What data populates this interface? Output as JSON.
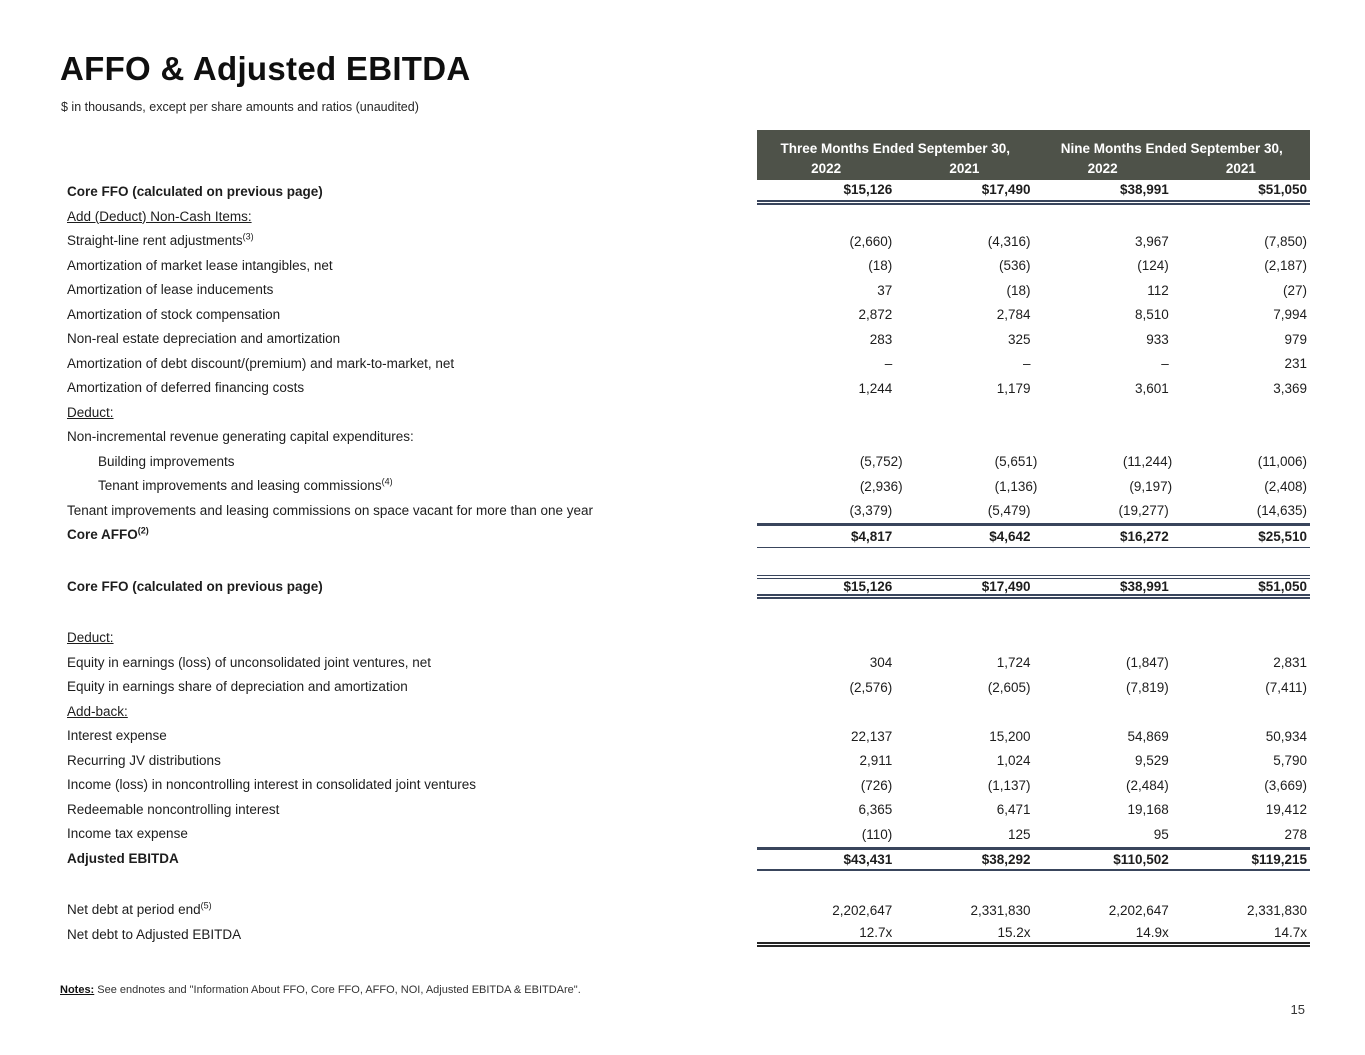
{
  "page": {
    "title": "AFFO & Adjusted EBITDA",
    "subtitle": "$ in thousands, except per share amounts and ratios (unaudited)",
    "page_number": "15"
  },
  "footer": {
    "notes_label": "Notes:",
    "notes_text": " See endnotes and \"Information About FFO, Core FFO, AFFO, NOI, Adjusted EBITDA & EBITDAre\"."
  },
  "colors": {
    "header_bg": "#4e5249",
    "rule": "#39455c",
    "rule_final": "#262626",
    "text": "#1d1d1d"
  },
  "table": {
    "header": {
      "group1": "Three Months Ended September 30,",
      "group2": "Nine Months Ended September 30,",
      "years": [
        "2022",
        "2021",
        "2022",
        "2021"
      ]
    },
    "rows": [
      {
        "label": "Core FFO (calculated on previous page)",
        "bold": true,
        "values": [
          "$15,126",
          "$17,490",
          "$38,991",
          "$51,050"
        ],
        "rule_below": "double"
      },
      {
        "label": "Add (Deduct) Non-Cash Items:",
        "underline": true
      },
      {
        "label": "Straight-line rent adjustments",
        "sup": "(3)",
        "values": [
          "(2,660)",
          "(4,316)",
          "3,967",
          "(7,850)"
        ]
      },
      {
        "label": "Amortization of market lease intangibles, net",
        "values": [
          "(18)",
          "(536)",
          "(124)",
          "(2,187)"
        ]
      },
      {
        "label": "Amortization of lease inducements",
        "values": [
          "37",
          "(18)",
          "112",
          "(27)"
        ]
      },
      {
        "label": "Amortization of stock compensation",
        "values": [
          "2,872",
          "2,784",
          "8,510",
          "7,994"
        ]
      },
      {
        "label": "Non-real estate depreciation and amortization",
        "values": [
          "283",
          "325",
          "933",
          "979"
        ]
      },
      {
        "label": "Amortization of debt discount/(premium) and mark-to-market, net",
        "values": [
          "–",
          "–",
          "–",
          "231"
        ]
      },
      {
        "label": "Amortization of deferred financing costs",
        "values": [
          "1,244",
          "1,179",
          "3,601",
          "3,369"
        ]
      },
      {
        "label": "Deduct:",
        "underline": true
      },
      {
        "label": "Non-incremental revenue generating capital expenditures:"
      },
      {
        "label": "Building improvements",
        "indent": true,
        "values": [
          "(5,752)",
          "(5,651)",
          "(11,244)",
          "(11,006)"
        ]
      },
      {
        "label": "Tenant improvements and leasing commissions",
        "sup": "(4)",
        "indent": true,
        "values": [
          "(2,936)",
          "(1,136)",
          "(9,197)",
          "(2,408)"
        ]
      },
      {
        "label": "Tenant improvements and leasing commissions on space vacant for more than one year",
        "values": [
          "(3,379)",
          "(5,479)",
          "(19,277)",
          "(14,635)"
        ]
      },
      {
        "label": "Core AFFO",
        "sup": "(2)",
        "bold": true,
        "values": [
          "$4,817",
          "$4,642",
          "$16,272",
          "$25,510"
        ],
        "rule_above": "thick",
        "rule_below": "thin"
      },
      {
        "type": "spacer"
      },
      {
        "label": "Core FFO (calculated on previous page)",
        "bold": true,
        "values": [
          "$15,126",
          "$17,490",
          "$38,991",
          "$51,050"
        ],
        "rule_above": "double-thin",
        "rule_below": "double"
      },
      {
        "type": "spacer"
      },
      {
        "label": "Deduct:",
        "underline": true
      },
      {
        "label": "Equity in earnings (loss) of unconsolidated joint ventures, net",
        "values": [
          "304",
          "1,724",
          "(1,847)",
          "2,831"
        ]
      },
      {
        "label": "Equity in earnings share of depreciation and amortization",
        "values": [
          "(2,576)",
          "(2,605)",
          "(7,819)",
          "(7,411)"
        ]
      },
      {
        "label": "Add-back:",
        "underline": true
      },
      {
        "label": "Interest expense",
        "values": [
          "22,137",
          "15,200",
          "54,869",
          "50,934"
        ]
      },
      {
        "label": "Recurring JV distributions",
        "values": [
          "2,911",
          "1,024",
          "9,529",
          "5,790"
        ]
      },
      {
        "label": "Income (loss) in noncontrolling interest in consolidated joint ventures",
        "values": [
          "(726)",
          "(1,137)",
          "(2,484)",
          "(3,669)"
        ]
      },
      {
        "label": "Redeemable noncontrolling interest",
        "values": [
          "6,365",
          "6,471",
          "19,168",
          "19,412"
        ]
      },
      {
        "label": "Income tax expense",
        "values": [
          "(110)",
          "125",
          "95",
          "278"
        ]
      },
      {
        "label": "Adjusted EBITDA",
        "bold": true,
        "values": [
          "$43,431",
          "$38,292",
          "$110,502",
          "$119,215"
        ],
        "rule_above": "thick",
        "rule_below": "medium"
      },
      {
        "type": "spacer"
      },
      {
        "label": "Net debt at period end",
        "sup": "(5)",
        "values": [
          "2,202,647",
          "2,331,830",
          "2,202,647",
          "2,331,830"
        ]
      },
      {
        "label": "Net debt to Adjusted EBITDA",
        "values": [
          "12.7x",
          "15.2x",
          "14.9x",
          "14.7x"
        ],
        "rule_below": "double-final"
      }
    ]
  }
}
